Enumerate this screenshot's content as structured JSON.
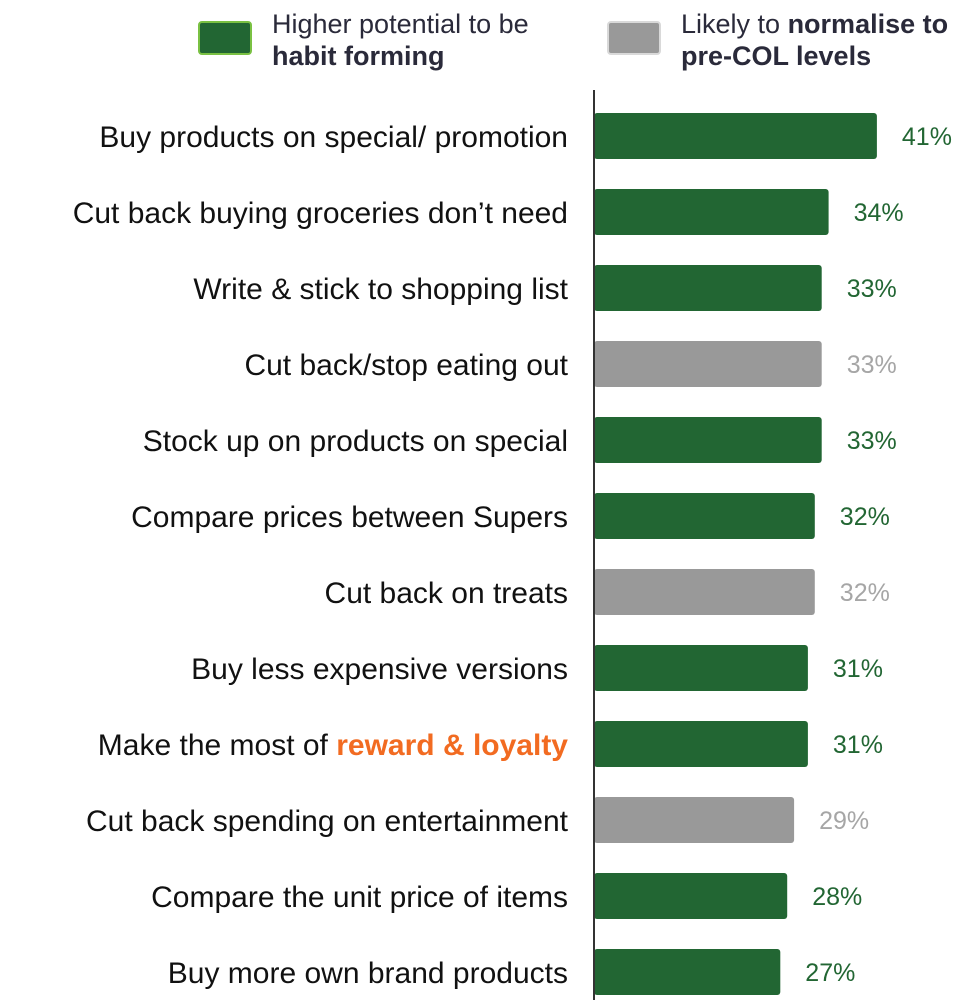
{
  "legend": {
    "habit": {
      "line1": "Higher potential to be",
      "line2_bold": "habit forming",
      "color": "#226633",
      "border": "#7ac143"
    },
    "normalise": {
      "prefix": "Likely to ",
      "bold1": "normalise to",
      "line2_bold": "pre-COL levels",
      "color": "#999999",
      "border": "#d9d9d9"
    }
  },
  "colors": {
    "habit": "#226633",
    "normalise": "#999999",
    "habit_label": "#226633",
    "normalise_label": "#a6a6a6",
    "highlight": "#f26b21",
    "axis": "#333333",
    "text": "#111111"
  },
  "chart_data": {
    "type": "bar",
    "orientation": "horizontal",
    "value_format": "percent",
    "xlim": [
      0,
      48
    ],
    "series_names": [
      "Higher potential to be habit forming",
      "Likely to normalise to pre-COL levels"
    ],
    "categories": [
      {
        "label": "Buy products on special/ promotion",
        "value": 41,
        "value_label": "41%",
        "group": "habit"
      },
      {
        "label": "Cut back buying groceries don’t need",
        "value": 34,
        "value_label": "34%",
        "group": "habit"
      },
      {
        "label": "Write & stick to shopping list",
        "value": 33,
        "value_label": "33%",
        "group": "habit"
      },
      {
        "label": "Cut back/stop eating out",
        "value": 33,
        "value_label": "33%",
        "group": "normalise"
      },
      {
        "label": "Stock up on products on special",
        "value": 33,
        "value_label": "33%",
        "group": "habit"
      },
      {
        "label": "Compare prices between Supers",
        "value": 32,
        "value_label": "32%",
        "group": "habit"
      },
      {
        "label": "Cut back on treats",
        "value": 32,
        "value_label": "32%",
        "group": "normalise"
      },
      {
        "label": "Buy less expensive versions",
        "value": 31,
        "value_label": "31%",
        "group": "habit"
      },
      {
        "label": "Make the most of ",
        "label_highlight": "reward & loyalty",
        "value": 31,
        "value_label": "31%",
        "group": "habit"
      },
      {
        "label": "Cut back spending on entertainment",
        "value": 29,
        "value_label": "29%",
        "group": "normalise"
      },
      {
        "label": "Compare the unit price of items",
        "value": 28,
        "value_label": "28%",
        "group": "habit"
      },
      {
        "label": "Buy more own brand products",
        "value": 27,
        "value_label": "27%",
        "group": "habit"
      }
    ]
  }
}
